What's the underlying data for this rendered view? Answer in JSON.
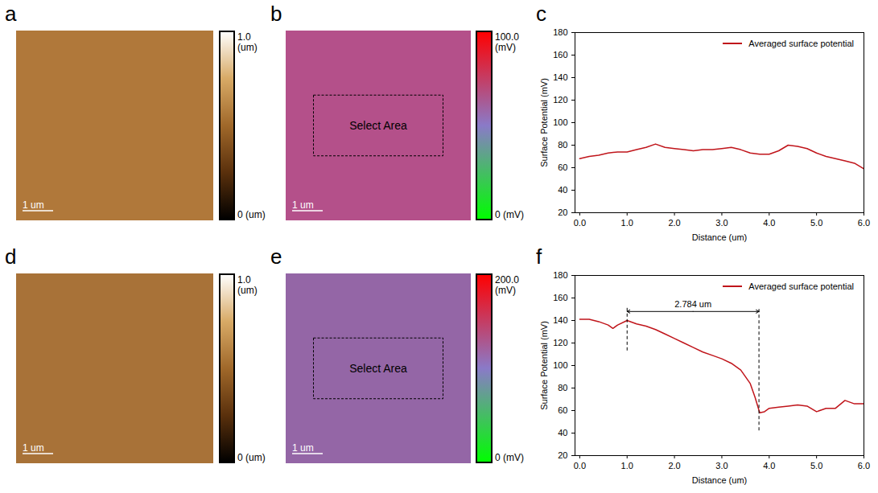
{
  "images": [
    {
      "panel": "a",
      "type": "image",
      "color": "#b0783a",
      "scale_bar": "1 um",
      "colorbar": {
        "colors": [
          "#000000",
          "#5a300c",
          "#a0682a",
          "#d8aa66",
          "#ffffff"
        ],
        "range": [
          0,
          1.0
        ],
        "ticks": [
          {
            "value": 0,
            "label": "0 (um)"
          },
          {
            "value": 1.0,
            "label": "1.0 (um)"
          }
        ]
      }
    },
    {
      "panel": "b",
      "type": "image",
      "color": "#b4508a",
      "scale_bar": "1 um",
      "box_label": "Select Area",
      "colorbar": {
        "colors": [
          "#00ff00",
          "#8a7ac8",
          "#ff0000"
        ],
        "range": [
          0,
          100.0
        ],
        "ticks": [
          {
            "value": 0,
            "label": "0 (mV)"
          },
          {
            "value": 100.0,
            "label": "100.0 (mV)"
          }
        ]
      }
    },
    {
      "panel": "d",
      "type": "image",
      "color": "#a87238",
      "scale_bar": "1 um",
      "colorbar": {
        "colors": [
          "#000000",
          "#5a300c",
          "#a0682a",
          "#d8aa66",
          "#ffffff"
        ],
        "range": [
          0,
          1.0
        ],
        "ticks": [
          {
            "value": 0,
            "label": "0 (um)"
          },
          {
            "value": 1.0,
            "label": "1.0 (um)"
          }
        ]
      }
    },
    {
      "panel": "e",
      "type": "image",
      "color": "#9466a6",
      "scale_bar": "1 um",
      "box_label": "Select Area",
      "colorbar": {
        "colors": [
          "#00ff00",
          "#8a7ac8",
          "#ff0000"
        ],
        "range": [
          0,
          200.0
        ],
        "ticks": [
          {
            "value": 0,
            "label": "0 (mV)"
          },
          {
            "value": 200.0,
            "label": "200.0 (mV)"
          }
        ]
      }
    }
  ],
  "chart_data": [
    {
      "panel": "c",
      "type": "line",
      "x_label": "Distance (um)",
      "y_label": "Surface Potential (mV)",
      "xlim": [
        -0.1,
        6
      ],
      "xticks": [
        0,
        1,
        2,
        3,
        4,
        5,
        6
      ],
      "ylim": [
        20,
        180
      ],
      "yticks": [
        20,
        40,
        60,
        80,
        100,
        120,
        140,
        160,
        180
      ],
      "legend": "upper right",
      "x": [
        0,
        0.2,
        0.4,
        0.6,
        0.8,
        1.0,
        1.2,
        1.4,
        1.6,
        1.8,
        2.0,
        2.2,
        2.4,
        2.6,
        2.8,
        3.0,
        3.2,
        3.4,
        3.6,
        3.8,
        4.0,
        4.2,
        4.4,
        4.6,
        4.8,
        5.0,
        5.2,
        5.4,
        5.6,
        5.8,
        6.0
      ],
      "series": [
        {
          "name": "Averaged surface potential",
          "color": "#c0151b",
          "values": [
            68,
            70,
            71,
            73,
            74,
            74,
            76,
            78,
            81,
            78,
            77,
            76,
            75,
            76,
            76,
            77,
            78,
            76,
            73,
            72,
            72,
            75,
            80,
            79,
            77,
            73,
            70,
            68,
            66,
            64,
            59
          ]
        }
      ]
    },
    {
      "panel": "f",
      "type": "line",
      "x_label": "Distance (um)",
      "y_label": "Surface Potential (mV)",
      "xlim": [
        -0.1,
        6
      ],
      "xticks": [
        0,
        1,
        2,
        3,
        4,
        5,
        6
      ],
      "ylim": [
        20,
        180
      ],
      "yticks": [
        20,
        40,
        60,
        80,
        100,
        120,
        140,
        160,
        180
      ],
      "legend": "upper right",
      "x": [
        0,
        0.2,
        0.4,
        0.6,
        0.7,
        0.8,
        1.0,
        1.2,
        1.4,
        1.6,
        1.8,
        2.0,
        2.2,
        2.4,
        2.6,
        2.8,
        3.0,
        3.2,
        3.4,
        3.6,
        3.7,
        3.8,
        3.9,
        4.0,
        4.2,
        4.4,
        4.6,
        4.8,
        5.0,
        5.2,
        5.4,
        5.6,
        5.8,
        6.0
      ],
      "series": [
        {
          "name": "Averaged surface potential",
          "color": "#c0151b",
          "values": [
            141,
            141,
            139,
            136,
            133,
            136,
            140,
            137,
            135,
            132,
            128,
            124,
            120,
            116,
            112,
            109,
            106,
            102,
            96,
            84,
            72,
            58,
            59,
            62,
            63,
            64,
            65,
            64,
            59,
            62,
            62,
            69,
            66,
            66
          ]
        }
      ],
      "annotations": [
        {
          "text": "2.784 um",
          "x": [
            1.0,
            3.784
          ],
          "y": 148
        }
      ],
      "dashed_lines": [
        {
          "x": 1.0,
          "y": [
            113,
            152
          ]
        },
        {
          "x": 3.784,
          "y": [
            42,
            152
          ]
        }
      ]
    }
  ]
}
